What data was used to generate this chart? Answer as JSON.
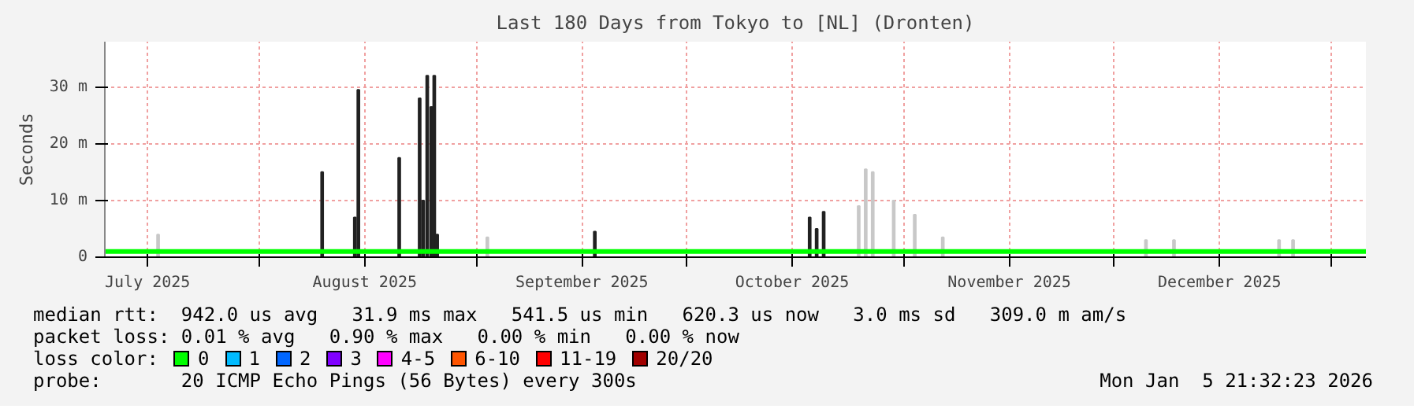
{
  "chart_data": {
    "type": "bar",
    "title": "Last 180 Days from Tokyo to [NL] (Dronten)",
    "ylabel": "Seconds",
    "xlim": [
      "2025-07-09T21:32",
      "2026-01-05T21:32"
    ],
    "xticks": [
      {
        "value": "2025-07-16",
        "label": "July 2025"
      },
      {
        "value": "2025-08-01",
        "label": null
      },
      {
        "value": "2025-08-16",
        "label": "August 2025"
      },
      {
        "value": "2025-09-01",
        "label": null
      },
      {
        "value": "2025-09-16",
        "label": "September 2025"
      },
      {
        "value": "2025-10-01",
        "label": null
      },
      {
        "value": "2025-10-16",
        "label": "October 2025"
      },
      {
        "value": "2025-11-01",
        "label": null
      },
      {
        "value": "2025-11-16",
        "label": "November 2025"
      },
      {
        "value": "2025-12-01",
        "label": null
      },
      {
        "value": "2025-12-16",
        "label": "December 2025"
      },
      {
        "value": "2026-01-01",
        "label": null
      }
    ],
    "ylim": [
      0,
      38
    ],
    "yticks": [
      0,
      {
        "value": 10,
        "label": "10 m"
      },
      {
        "value": 20,
        "label": "20 m"
      },
      {
        "value": 30,
        "label": "30 m"
      }
    ],
    "grid": true,
    "legend": "bottom",
    "legend_title": "loss color:",
    "series": [
      {
        "color": "#c8c8c8",
        "x": [
          "2025-07-17T12:00",
          "2025-09-02T12:00",
          "2025-10-25T12:00",
          "2025-10-26T12:00",
          "2025-10-27T12:00",
          "2025-10-30T12:00",
          "2025-11-02T12:00",
          "2025-11-06T12:00",
          "2025-12-05T12:00",
          "2025-12-09T12:00",
          "2025-12-24T12:00",
          "2025-12-26T12:00"
        ],
        "values": [
          4,
          3.5,
          9,
          15.5,
          15,
          10,
          7.5,
          3.5,
          3,
          3,
          3,
          3
        ]
      },
      {
        "color": "#222222",
        "x": [
          "2025-08-09T22:00",
          "2025-08-14T14:00",
          "2025-08-15T02:00",
          "2025-08-20T22:00",
          "2025-08-23T20:00",
          "2025-08-24T08:00",
          "2025-08-24T22:00",
          "2025-08-25T12:00",
          "2025-08-25T22:00",
          "2025-08-26T08:00",
          "2025-09-17T20:00",
          "2025-10-18T12:00",
          "2025-10-19T12:00",
          "2025-10-20T12:00"
        ],
        "values": [
          15,
          7,
          29.5,
          17.5,
          28,
          10,
          32,
          26.5,
          32,
          4,
          4.5,
          7,
          5,
          8
        ]
      },
      {
        "type": "line",
        "name": "0",
        "color": "#00ff00",
        "x": [
          "2025-07-09T21:32",
          "2026-01-05T21:32"
        ],
        "values": [
          1,
          1
        ]
      },
      {
        "name": "1",
        "color": "#00bbff",
        "values": [
          null
        ]
      },
      {
        "name": "2",
        "color": "#0066ff",
        "values": [
          null
        ]
      },
      {
        "name": "3",
        "color": "#8000ff",
        "values": [
          null
        ]
      },
      {
        "name": "4-5",
        "color": "#ff00ff",
        "values": [
          null
        ]
      },
      {
        "name": "6-10",
        "color": "#ff5500",
        "values": [
          null
        ]
      },
      {
        "name": "11-19",
        "color": "#ff0000",
        "values": [
          null
        ]
      },
      {
        "name": "20/20",
        "color": "#a10000",
        "values": [
          null
        ]
      }
    ],
    "annotations": [
      "median rtt:  942.0 us avg   31.9 ms max   541.5 us min   620.3 us now   3.0 ms sd   309.0 m am/s",
      "packet loss: 0.01 % avg   0.90 % max   0.00 % min   0.00 % now",
      "probe:       20 ICMP Echo Pings (56 Bytes) every 300s",
      "Mon Jan  5 21:32:23 2026"
    ]
  }
}
